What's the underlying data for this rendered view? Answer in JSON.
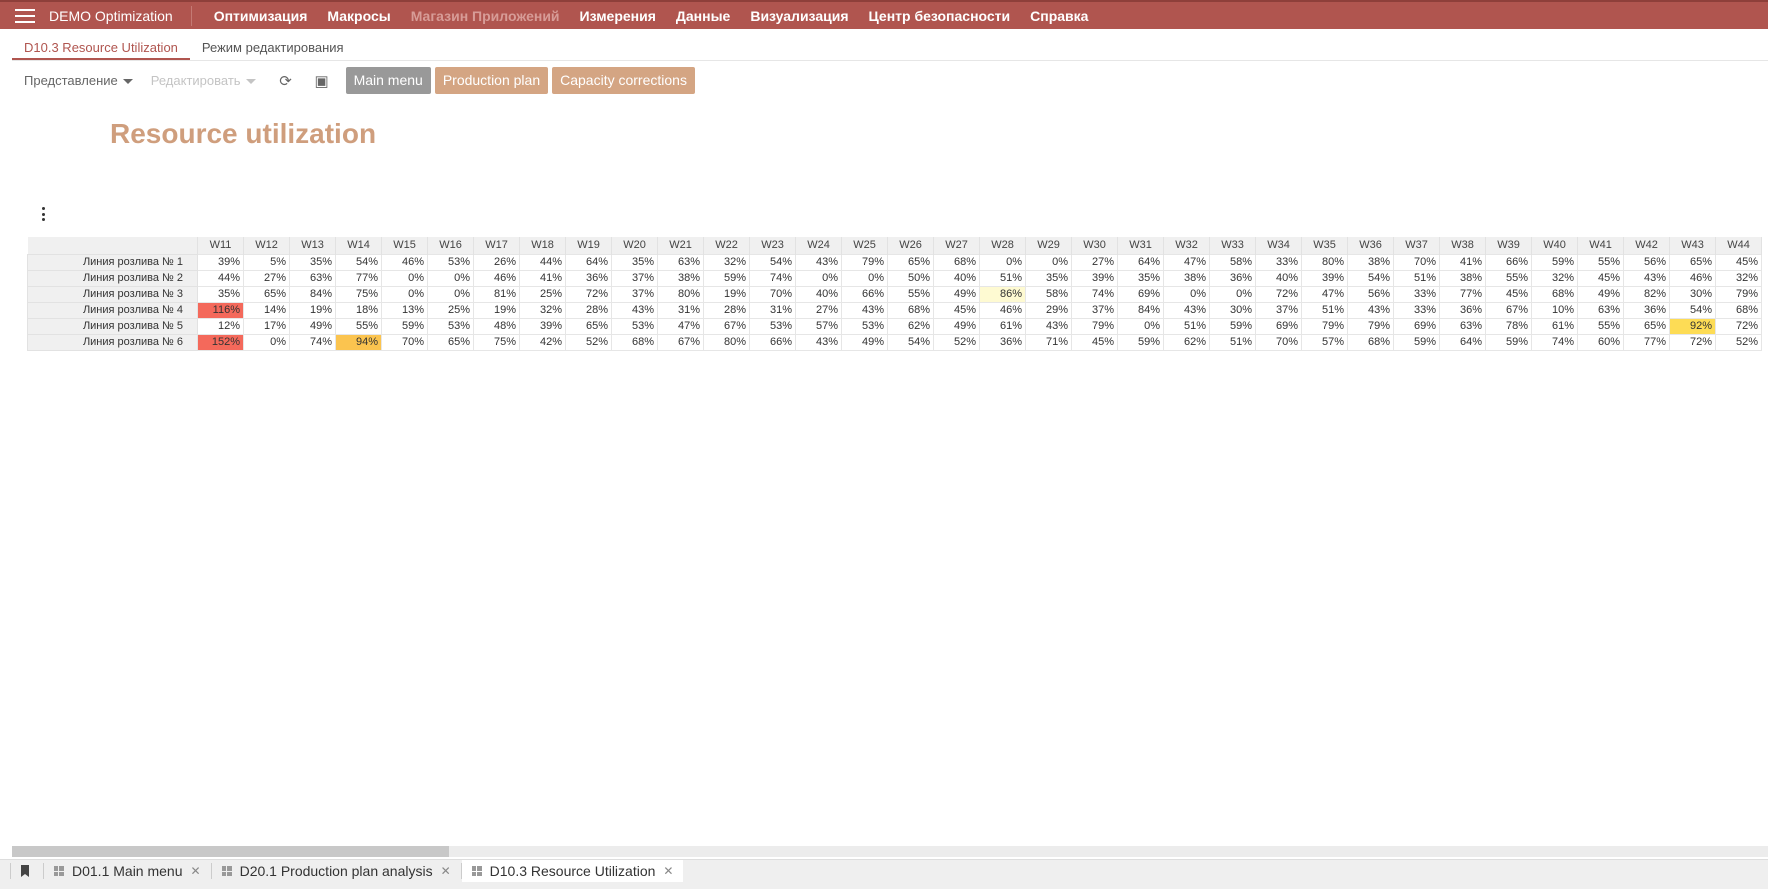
{
  "app": {
    "title": "DEMO Optimization",
    "menu": [
      {
        "label": "Оптимизация",
        "disabled": false
      },
      {
        "label": "Макросы",
        "disabled": false
      },
      {
        "label": "Магазин Приложений",
        "disabled": true
      },
      {
        "label": "Измерения",
        "disabled": false
      },
      {
        "label": "Данные",
        "disabled": false
      },
      {
        "label": "Визуализация",
        "disabled": false
      },
      {
        "label": "Центр безопасности",
        "disabled": false
      },
      {
        "label": "Справка",
        "disabled": false
      }
    ]
  },
  "subtabs": [
    "D10.3 Resource Utilization",
    "Режим редактирования"
  ],
  "toolbar": {
    "view": "Представление",
    "edit": "Редактировать",
    "refresh_icon": "refresh-icon",
    "fullscreen_icon": "fullscreen-icon",
    "buttons": [
      {
        "label": "Main menu",
        "color": "#999999"
      },
      {
        "label": "Production plan",
        "color": "#d4a583"
      },
      {
        "label": "Capacity corrections",
        "color": "#d4a583"
      }
    ]
  },
  "page_title": "Resource utilization",
  "table": {
    "columns": [
      "W11",
      "W12",
      "W13",
      "W14",
      "W15",
      "W16",
      "W17",
      "W18",
      "W19",
      "W20",
      "W21",
      "W22",
      "W23",
      "W24",
      "W25",
      "W26",
      "W27",
      "W28",
      "W29",
      "W30",
      "W31",
      "W32",
      "W33",
      "W34",
      "W35",
      "W36",
      "W37",
      "W38",
      "W39",
      "W40",
      "W41",
      "W42",
      "W43",
      "W44"
    ],
    "rows": [
      {
        "label": "Линия розлива № 1",
        "values": [
          "39%",
          "5%",
          "35%",
          "54%",
          "46%",
          "53%",
          "26%",
          "44%",
          "64%",
          "35%",
          "63%",
          "32%",
          "54%",
          "43%",
          "79%",
          "65%",
          "68%",
          "0%",
          "0%",
          "27%",
          "64%",
          "47%",
          "58%",
          "33%",
          "80%",
          "38%",
          "70%",
          "41%",
          "66%",
          "59%",
          "55%",
          "56%",
          "65%",
          "45%"
        ]
      },
      {
        "label": "Линия розлива № 2",
        "values": [
          "44%",
          "27%",
          "63%",
          "77%",
          "0%",
          "0%",
          "46%",
          "41%",
          "36%",
          "37%",
          "38%",
          "59%",
          "74%",
          "0%",
          "0%",
          "50%",
          "40%",
          "51%",
          "35%",
          "39%",
          "35%",
          "38%",
          "36%",
          "40%",
          "39%",
          "54%",
          "51%",
          "38%",
          "55%",
          "32%",
          "45%",
          "43%",
          "46%",
          "32%"
        ]
      },
      {
        "label": "Линия розлива № 3",
        "values": [
          "35%",
          "65%",
          "84%",
          "75%",
          "0%",
          "0%",
          "81%",
          "25%",
          "72%",
          "37%",
          "80%",
          "19%",
          "70%",
          "40%",
          "66%",
          "55%",
          "49%",
          "86%",
          "58%",
          "74%",
          "69%",
          "0%",
          "0%",
          "72%",
          "47%",
          "56%",
          "33%",
          "77%",
          "45%",
          "68%",
          "49%",
          "82%",
          "30%",
          "79%"
        ]
      },
      {
        "label": "Линия розлива № 4",
        "values": [
          "116%",
          "14%",
          "19%",
          "18%",
          "13%",
          "25%",
          "19%",
          "32%",
          "28%",
          "43%",
          "31%",
          "28%",
          "31%",
          "27%",
          "43%",
          "68%",
          "45%",
          "46%",
          "29%",
          "37%",
          "84%",
          "43%",
          "30%",
          "37%",
          "51%",
          "43%",
          "33%",
          "36%",
          "67%",
          "10%",
          "63%",
          "36%",
          "54%",
          "68%"
        ]
      },
      {
        "label": "Линия розлива № 5",
        "values": [
          "12%",
          "17%",
          "49%",
          "55%",
          "59%",
          "53%",
          "48%",
          "39%",
          "65%",
          "53%",
          "47%",
          "67%",
          "53%",
          "57%",
          "53%",
          "62%",
          "49%",
          "61%",
          "43%",
          "79%",
          "0%",
          "51%",
          "59%",
          "69%",
          "79%",
          "79%",
          "69%",
          "63%",
          "78%",
          "61%",
          "55%",
          "65%",
          "92%",
          "72%"
        ]
      },
      {
        "label": "Линия розлива № 6",
        "values": [
          "152%",
          "0%",
          "74%",
          "94%",
          "70%",
          "65%",
          "75%",
          "42%",
          "52%",
          "68%",
          "67%",
          "80%",
          "66%",
          "43%",
          "49%",
          "54%",
          "52%",
          "36%",
          "71%",
          "45%",
          "59%",
          "62%",
          "51%",
          "70%",
          "57%",
          "68%",
          "59%",
          "64%",
          "59%",
          "74%",
          "60%",
          "77%",
          "72%",
          "52%"
        ]
      }
    ],
    "highlights": [
      {
        "row": 3,
        "col": "W11",
        "color": "#f4695b"
      },
      {
        "row": 5,
        "col": "W11",
        "color": "#f4695b"
      },
      {
        "row": 5,
        "col": "W14",
        "color": "#fbc44f"
      },
      {
        "row": 4,
        "col": "W43",
        "color": "#fddc55"
      },
      {
        "row": 2,
        "col": "W28",
        "color": "#fefad2"
      }
    ]
  },
  "bottom_tabs": [
    {
      "label": "D01.1 Main menu",
      "active": false
    },
    {
      "label": "D20.1 Production plan analysis",
      "active": false
    },
    {
      "label": "D10.3 Resource Utilization",
      "active": true
    }
  ],
  "colors": {
    "brand": "#b0554f",
    "title": "#cf9e7d"
  }
}
